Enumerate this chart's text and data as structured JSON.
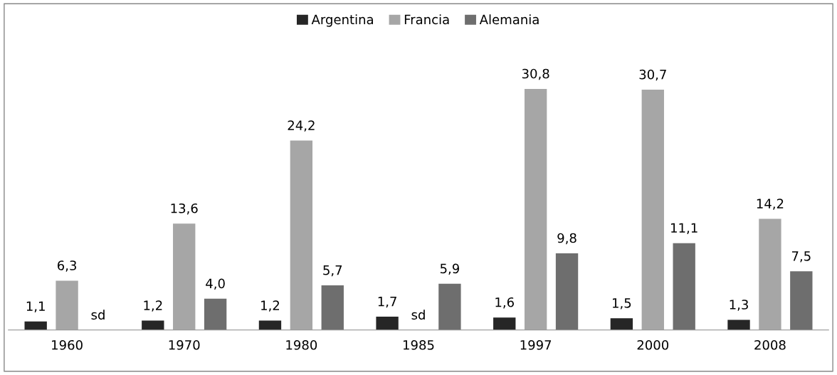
{
  "chart_data": {
    "type": "bar",
    "categories": [
      "1960",
      "1970",
      "1980",
      "1985",
      "1997",
      "2000",
      "2008"
    ],
    "series": [
      {
        "name": "Argentina",
        "color": "#262626",
        "values": [
          1.1,
          1.2,
          1.2,
          1.7,
          1.6,
          1.5,
          1.3
        ],
        "value_labels": [
          "1,1",
          "1,2",
          "1,2",
          "1,7",
          "1,6",
          "1,5",
          "1,3"
        ]
      },
      {
        "name": "Francia",
        "color": "#a6a6a6",
        "values": [
          6.3,
          13.6,
          24.2,
          null,
          30.8,
          30.7,
          14.2
        ],
        "value_labels": [
          "6,3",
          "13,6",
          "24,2",
          "sd",
          "30,8",
          "30,7",
          "14,2"
        ]
      },
      {
        "name": "Alemania",
        "color": "#6e6e6e",
        "values": [
          null,
          4.0,
          5.7,
          5.9,
          9.8,
          11.1,
          7.5
        ],
        "value_labels": [
          "sd",
          "4,0",
          "5,7",
          "5,9",
          "9,8",
          "11,1",
          "7,5"
        ]
      }
    ],
    "legend": "top",
    "tick_labels": "x",
    "grid": false
  }
}
